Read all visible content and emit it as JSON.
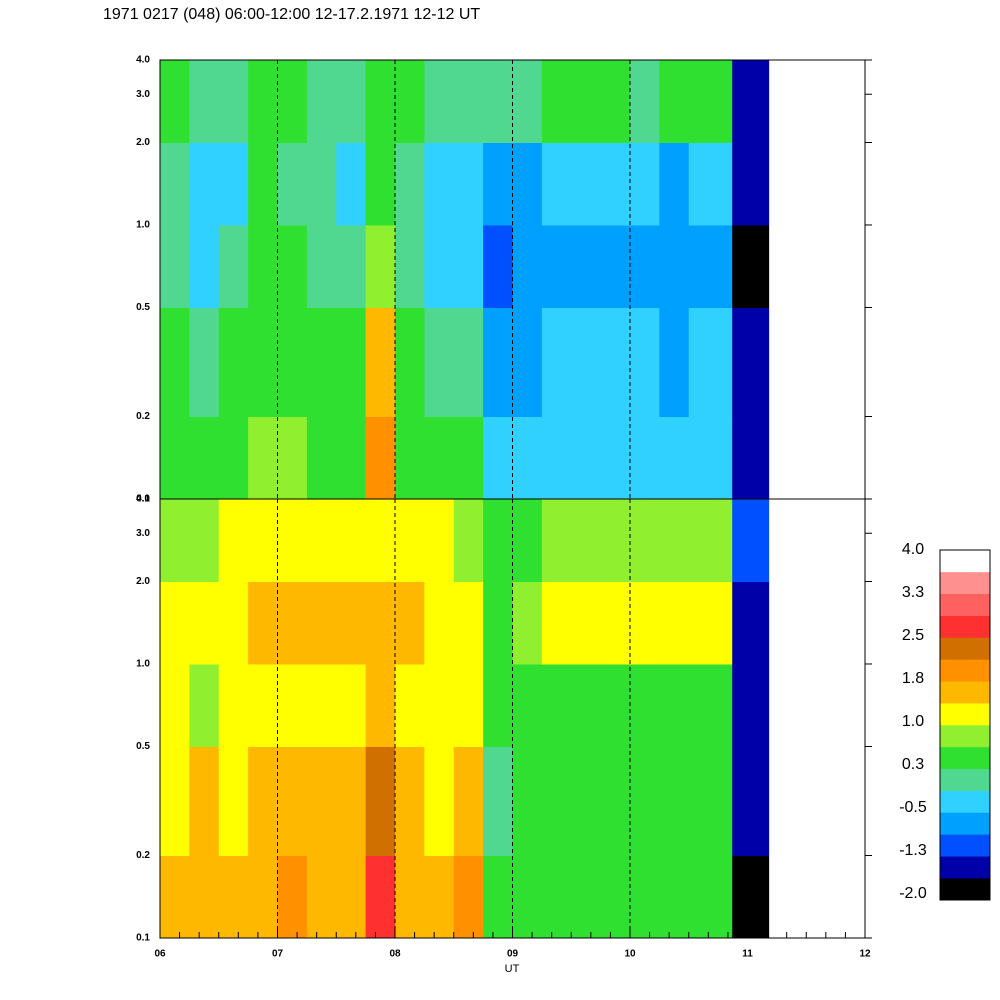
{
  "chart_data": {
    "type": "heatmap",
    "title": "1971 0217 (048) 06:00-12:00 12-17.2.1971  12-12 UT",
    "xlabel": "UT",
    "xlim": [
      6,
      12
    ],
    "xticks": [
      {
        "value": 6,
        "label": "06"
      },
      {
        "value": 7,
        "label": "07"
      },
      {
        "value": 8,
        "label": "08"
      },
      {
        "value": 9,
        "label": "09"
      },
      {
        "value": 10,
        "label": "10"
      },
      {
        "value": 11,
        "label": "11"
      },
      {
        "value": 12,
        "label": "12"
      }
    ],
    "vlines": [
      7,
      8,
      9,
      10
    ],
    "bins": [
      6,
      6.25,
      6.5,
      6.75,
      7,
      7.25,
      7.5,
      7.75,
      8,
      8.25,
      8.5,
      8.75,
      9,
      9.25,
      9.5,
      9.75,
      10,
      10.25,
      10.5,
      10.75,
      10.87,
      11.18
    ],
    "log_y": true,
    "ylim": [
      0.1,
      4
    ],
    "yedges": [
      0.1,
      0.2,
      0.5,
      1,
      2,
      4
    ],
    "yticks": [
      0.1,
      0.2,
      0.5,
      {
        "value": 1,
        "label": "1.0"
      },
      {
        "value": 2,
        "label": "2.0"
      },
      {
        "value": 3,
        "label": "3.0"
      },
      {
        "value": 4,
        "label": "4.0"
      }
    ],
    "panels": [
      {
        "z": [
          [
            0.6,
            0.3,
            0.6,
            0.8,
            0.8,
            0.6,
            0.6,
            1.9,
            0.3,
            0.3,
            0.3,
            -0.4,
            -0.4,
            -0.4,
            -0.4,
            -0.4,
            -0.4,
            -0.4,
            -0.4,
            -0.4,
            -1.6
          ],
          [
            0.3,
            0,
            0.3,
            0.6,
            0.6,
            0.3,
            0.3,
            1.5,
            0.3,
            0,
            0,
            -0.6,
            -0.6,
            -0.4,
            -0.4,
            -0.4,
            -0.4,
            -0.6,
            -0.4,
            -0.4,
            -1.6
          ],
          [
            0,
            -0.4,
            0,
            0.3,
            0.3,
            0,
            0,
            0.8,
            0,
            -0.2,
            -0.2,
            -1.0,
            -0.8,
            -0.6,
            -0.6,
            -0.6,
            -0.6,
            -0.8,
            -0.6,
            -0.6,
            -1.8
          ],
          [
            0,
            -0.4,
            -0.4,
            0.3,
            0,
            0,
            -0.2,
            0.3,
            0,
            -0.4,
            -0.4,
            -0.8,
            -0.8,
            -0.4,
            -0.4,
            -0.4,
            -0.4,
            -0.6,
            -0.4,
            -0.4,
            -1.6
          ],
          [
            0.3,
            0,
            0,
            0.3,
            0.3,
            0,
            0,
            0.3,
            0.3,
            0.1,
            0.1,
            0,
            0,
            0.3,
            0.3,
            0.3,
            0.1,
            0.3,
            0.3,
            0.3,
            -1.4
          ]
        ]
      },
      {
        "z": [
          [
            1.5,
            1.6,
            1.5,
            1.6,
            1.8,
            1.6,
            1.6,
            2.6,
            1.6,
            1.6,
            2.0,
            0.3,
            0.3,
            0.5,
            0.3,
            0.3,
            0.3,
            0.3,
            0.3,
            0.3,
            -1.8
          ],
          [
            1.3,
            1.5,
            1.3,
            1.5,
            1.6,
            1.5,
            1.5,
            2.2,
            1.5,
            1.3,
            1.5,
            0,
            0.3,
            0.3,
            0.3,
            0.3,
            0.3,
            0.3,
            0.3,
            0.3,
            -1.6
          ],
          [
            1.0,
            0.8,
            1.2,
            1.3,
            1.3,
            1.3,
            1.3,
            1.6,
            1.3,
            1.2,
            1.0,
            0.3,
            0.4,
            0.6,
            0.6,
            0.6,
            0.6,
            0.6,
            0.6,
            0.5,
            -1.5
          ],
          [
            1.2,
            1.0,
            1.3,
            1.5,
            1.5,
            1.5,
            1.5,
            1.5,
            1.5,
            1.3,
            1.0,
            0.6,
            0.8,
            1.0,
            1.0,
            1.0,
            1.2,
            1.2,
            1.2,
            1.0,
            -1.4
          ],
          [
            0.8,
            0.8,
            1.0,
            1.0,
            1.2,
            1.2,
            1.2,
            1.2,
            1.0,
            1.0,
            0.8,
            0.6,
            0.6,
            0.8,
            0.8,
            0.8,
            0.8,
            0.8,
            0.8,
            0.8,
            -1.0
          ]
        ]
      }
    ],
    "colorbar": {
      "lim": [
        -2,
        4
      ],
      "colors": [
        "#000000",
        "#0000a8",
        "#0050ff",
        "#00a0ff",
        "#30d0ff",
        "#50d890",
        "#30e030",
        "#90f030",
        "#ffff00",
        "#ffb800",
        "#ff9000",
        "#d07000",
        "#ff3030",
        "#ff6060",
        "#ff9090",
        "#ffffff"
      ],
      "ticks": [
        {
          "value": -2,
          "label": "-2.0"
        },
        {
          "value": -1.25,
          "label": "-1.3"
        },
        -0.5,
        {
          "value": 0.25,
          "label": "0.3"
        },
        {
          "value": 1,
          "label": "1.0"
        },
        {
          "value": 1.75,
          "label": "1.8"
        },
        2.5,
        {
          "value": 3.25,
          "label": "3.3"
        },
        {
          "value": 4,
          "label": "4.0"
        }
      ]
    }
  }
}
